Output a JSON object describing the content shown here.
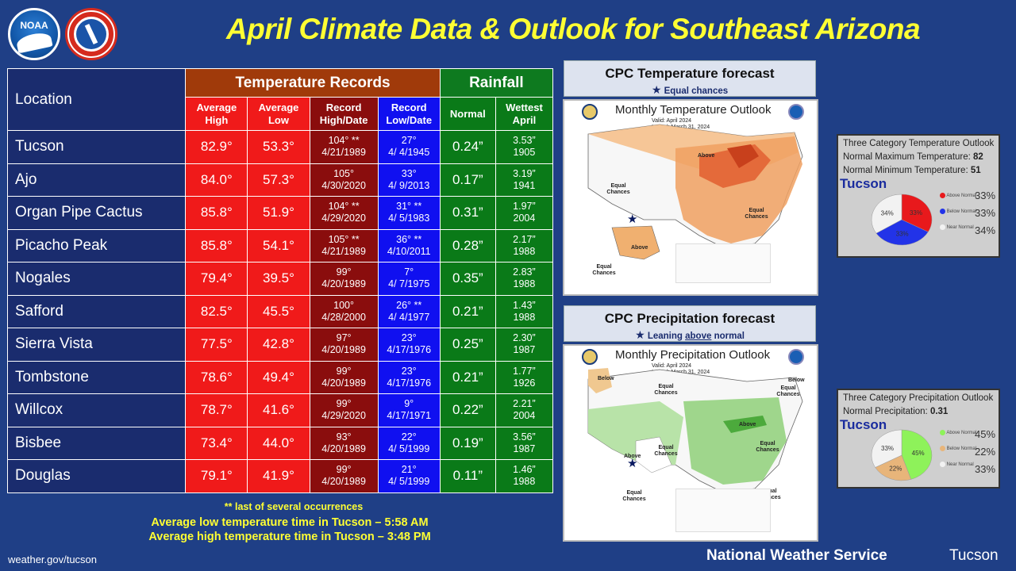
{
  "header": {
    "title": "April Climate Data & Outlook for Southeast Arizona"
  },
  "table": {
    "location_header": "Location",
    "temp_records_header": "Temperature Records",
    "rainfall_header": "Rainfall",
    "columns": {
      "avg_high": "Average High",
      "avg_low": "Average Low",
      "rec_high": "Record High/Date",
      "rec_low": "Record Low/Date",
      "normal": "Normal",
      "wettest": "Wettest April"
    },
    "rows": [
      {
        "loc": "Tucson",
        "avg_high": "82.9°",
        "avg_low": "53.3°",
        "rec_high_val": "104° **",
        "rec_high_date": "4/21/1989",
        "rec_low_val": "27°",
        "rec_low_date": "4/ 4/1945",
        "normal": "0.24”",
        "wettest_val": "3.53”",
        "wettest_year": "1905"
      },
      {
        "loc": "Ajo",
        "avg_high": "84.0°",
        "avg_low": "57.3°",
        "rec_high_val": "105°",
        "rec_high_date": "4/30/2020",
        "rec_low_val": "33°",
        "rec_low_date": "4/ 9/2013",
        "normal": "0.17”",
        "wettest_val": "3.19”",
        "wettest_year": "1941"
      },
      {
        "loc": "Organ Pipe Cactus",
        "avg_high": "85.8°",
        "avg_low": "51.9°",
        "rec_high_val": "104° **",
        "rec_high_date": "4/29/2020",
        "rec_low_val": "31° **",
        "rec_low_date": "4/ 5/1983",
        "normal": "0.31”",
        "wettest_val": "1.97”",
        "wettest_year": "2004"
      },
      {
        "loc": "Picacho Peak",
        "avg_high": "85.8°",
        "avg_low": "54.1°",
        "rec_high_val": "105° **",
        "rec_high_date": "4/21/1989",
        "rec_low_val": "36° **",
        "rec_low_date": "4/10/2011",
        "normal": "0.28”",
        "wettest_val": "2.17”",
        "wettest_year": "1988"
      },
      {
        "loc": "Nogales",
        "avg_high": "79.4°",
        "avg_low": "39.5°",
        "rec_high_val": "99°",
        "rec_high_date": "4/20/1989",
        "rec_low_val": "7°",
        "rec_low_date": "4/ 7/1975",
        "normal": "0.35”",
        "wettest_val": "2.83”",
        "wettest_year": "1988"
      },
      {
        "loc": "Safford",
        "avg_high": "82.5°",
        "avg_low": "45.5°",
        "rec_high_val": "100°",
        "rec_high_date": "4/28/2000",
        "rec_low_val": "26° **",
        "rec_low_date": "4/ 4/1977",
        "normal": "0.21”",
        "wettest_val": "1.43”",
        "wettest_year": "1988"
      },
      {
        "loc": "Sierra Vista",
        "avg_high": "77.5°",
        "avg_low": "42.8°",
        "rec_high_val": "97°",
        "rec_high_date": "4/20/1989",
        "rec_low_val": "23°",
        "rec_low_date": "4/17/1976",
        "normal": "0.25”",
        "wettest_val": "2.30”",
        "wettest_year": "1987"
      },
      {
        "loc": "Tombstone",
        "avg_high": "78.6°",
        "avg_low": "49.4°",
        "rec_high_val": "99°",
        "rec_high_date": "4/20/1989",
        "rec_low_val": "23°",
        "rec_low_date": "4/17/1976",
        "normal": "0.21”",
        "wettest_val": "1.77”",
        "wettest_year": "1926"
      },
      {
        "loc": "Willcox",
        "avg_high": "78.7°",
        "avg_low": "41.6°",
        "rec_high_val": "99°",
        "rec_high_date": "4/29/2020",
        "rec_low_val": "9°",
        "rec_low_date": "4/17/1971",
        "normal": "0.22”",
        "wettest_val": "2.21”",
        "wettest_year": "2004"
      },
      {
        "loc": "Bisbee",
        "avg_high": "73.4°",
        "avg_low": "44.0°",
        "rec_high_val": "93°",
        "rec_high_date": "4/20/1989",
        "rec_low_val": "22°",
        "rec_low_date": "4/ 5/1999",
        "normal": "0.19”",
        "wettest_val": "3.56”",
        "wettest_year": "1987"
      },
      {
        "loc": "Douglas",
        "avg_high": "79.1°",
        "avg_low": "41.9°",
        "rec_high_val": "99°",
        "rec_high_date": "4/20/1989",
        "rec_low_val": "21°",
        "rec_low_date": "4/ 5/1999",
        "normal": "0.11”",
        "wettest_val": "1.46”",
        "wettest_year": "1988"
      }
    ]
  },
  "footer": {
    "footnote": "** last of several occurrences",
    "low_time": "Average low temperature time in Tucson – 5:58 AM",
    "high_time": "Average high temperature time in Tucson – 3:48 PM",
    "url": "weather.gov/tucson",
    "org": "National Weather Service",
    "office": "Tucson"
  },
  "temp_forecast": {
    "title": "CPC Temperature forecast",
    "subtitle": "Equal chances",
    "map_title": "Monthly Temperature Outlook",
    "valid": "Valid:  April 2024",
    "issued": "Issued:  March 31, 2024",
    "labels": {
      "above": "Above",
      "equal1": "Equal Chances",
      "equal2": "Equal Chances",
      "above_ak": "Above",
      "equal_ak": "Equal Chances"
    }
  },
  "precip_forecast": {
    "title": "CPC Precipitation forecast",
    "subtitle_pre": "Leaning ",
    "subtitle_em": "above",
    "subtitle_post": " normal",
    "map_title": "Monthly Precipitation Outlook",
    "valid": "Valid:  April 2024",
    "issued": "Issued:  March 31, 2024",
    "labels": {
      "below": "Below",
      "equal1": "Equal Chances",
      "below2": "Below",
      "equal2": "Equal Chances",
      "above1": "Above",
      "above2": "Above",
      "equal3": "Equal Chances",
      "equal4": "Equal Chances",
      "equal5": "Equal Chances",
      "equal6": "Equal Chances"
    }
  },
  "temp_pie": {
    "title": "Three Category Temperature Outlook",
    "line1_label": "Normal Maximum Temperature: ",
    "line1_value": "82",
    "line2_label": "Normal Minimum Temperature: ",
    "line2_value": "51",
    "city": "Tucson",
    "slices": [
      {
        "name": "Above Normal",
        "value": 33,
        "color": "#e8191c"
      },
      {
        "name": "Below Normal",
        "value": 33,
        "color": "#2233e8"
      },
      {
        "name": "Near Normal",
        "value": 34,
        "color": "#f2f2f2"
      }
    ],
    "legend": {
      "above": "Above Normal",
      "below": "Below Normal",
      "near": "Near Normal"
    },
    "pct": {
      "above": "33%",
      "below": "33%",
      "near": "34%"
    }
  },
  "precip_pie": {
    "title": "Three Category Precipitation Outlook",
    "line1_label": "Normal Precipitation: ",
    "line1_value": "0.31",
    "city": "Tucson",
    "slices": [
      {
        "name": "Above Normal",
        "value": 45,
        "color": "#8ef25a"
      },
      {
        "name": "Below Normal",
        "value": 22,
        "color": "#e8b57a"
      },
      {
        "name": "Near Normal",
        "value": 33,
        "color": "#f2f2f2"
      }
    ],
    "legend": {
      "above": "Above Normal",
      "below": "Below Normal",
      "near": "Near Normal"
    },
    "pct": {
      "above": "45%",
      "below": "22%",
      "near": "33%"
    }
  }
}
